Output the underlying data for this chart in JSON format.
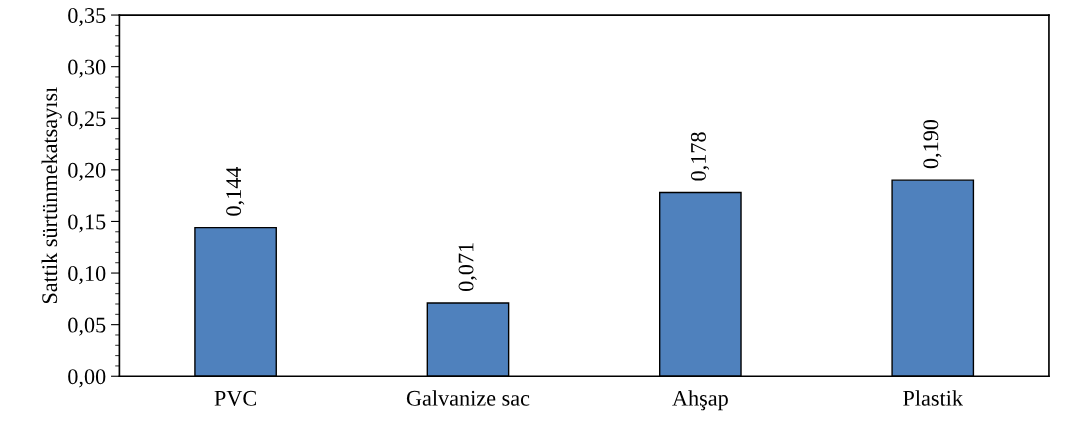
{
  "chart_data": {
    "type": "bar",
    "ylabel": "Sattik sürtünmekatsayısı",
    "categories": [
      "PVC",
      "Galvanize sac",
      "Ahşap",
      "Plastik"
    ],
    "values": [
      0.144,
      0.071,
      0.178,
      0.19
    ],
    "value_labels": [
      "0,144",
      "0,071",
      "0,178",
      "0,190"
    ],
    "color": "#4f81bd",
    "ylim": [
      0,
      0.35
    ],
    "yticks": [
      {
        "value": 0,
        "label": "0,00"
      },
      {
        "value": 0.05,
        "label": "0,05"
      },
      {
        "value": 0.1,
        "label": "0,10"
      },
      {
        "value": 0.15,
        "label": "0,15"
      },
      {
        "value": 0.2,
        "label": "0,20"
      },
      {
        "value": 0.25,
        "label": "0,25"
      },
      {
        "value": 0.3,
        "label": "0,30"
      },
      {
        "value": 0.35,
        "label": "0,35"
      }
    ],
    "grid": false,
    "legend": false
  }
}
